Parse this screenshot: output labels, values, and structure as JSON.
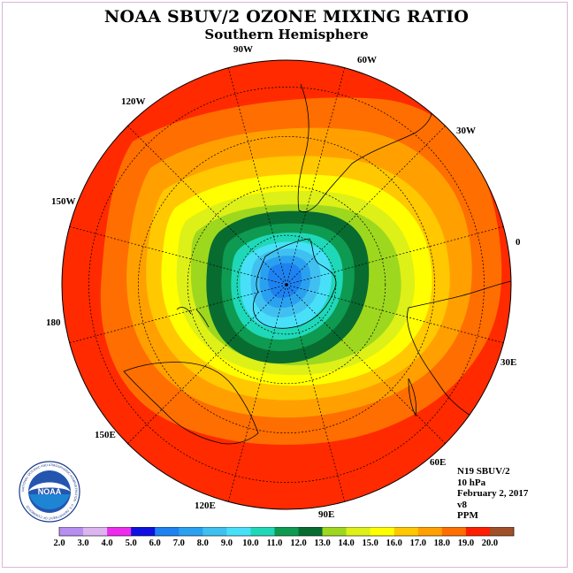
{
  "title": "NOAA SBUV/2 OZONE MIXING RATIO",
  "subtitle": "Southern Hemisphere",
  "longitude_labels": [
    {
      "id": "90w",
      "text": "90W"
    },
    {
      "id": "60w",
      "text": "60W"
    },
    {
      "id": "120w",
      "text": "120W"
    },
    {
      "id": "30w",
      "text": "30W"
    },
    {
      "id": "150w",
      "text": "150W"
    },
    {
      "id": "0",
      "text": "0"
    },
    {
      "id": "180",
      "text": "180"
    },
    {
      "id": "30e",
      "text": "30E"
    },
    {
      "id": "150e",
      "text": "150E"
    },
    {
      "id": "60e",
      "text": "60E"
    },
    {
      "id": "120e",
      "text": "120E"
    },
    {
      "id": "90e",
      "text": "90E"
    }
  ],
  "info": {
    "satellite": "N19 SBUV/2",
    "pressure": "10 hPa",
    "date": "February 2, 2017",
    "version": "v8",
    "units": "PPM"
  },
  "logo": {
    "text": "NOAA",
    "ring_text": "NATIONAL OCEANIC AND ATMOSPHERIC ADMINISTRATION · U.S. DEPARTMENT OF COMMERCE"
  },
  "colorbar": {
    "labels": [
      "2.0",
      "3.0",
      "4.0",
      "5.0",
      "6.0",
      "7.0",
      "8.0",
      "9.0",
      "10.0",
      "11.0",
      "12.0",
      "13.0",
      "14.0",
      "15.0",
      "16.0",
      "17.0",
      "18.0",
      "19.0",
      "20.0"
    ],
    "colors": [
      "#b68ff0",
      "#dcb4f0",
      "#ee2cee",
      "#1010e0",
      "#1e82f0",
      "#2aa0f0",
      "#40c0f0",
      "#48e0f8",
      "#1fd8b8",
      "#0e9a50",
      "#086c30",
      "#9ed81e",
      "#ddf018",
      "#ffff00",
      "#ffc800",
      "#ffa000",
      "#ff6e00",
      "#ff1e00",
      "#a05028"
    ]
  },
  "map_colors": {
    "band_18_19": "#ff2a00",
    "band_17_18": "#ff6e00",
    "band_16_17": "#ffa000",
    "band_15_16": "#ffc800",
    "band_14_15": "#ffff00",
    "band_13_14": "#ddf018",
    "band_12_13": "#9ed81e",
    "band_11_12": "#086c30",
    "band_10_11": "#0e9a50",
    "band_9_10": "#1fd8b8",
    "band_8_9": "#48e0f8",
    "band_7_8": "#40c0f0",
    "band_6_7": "#2aa0f0",
    "band_5_6": "#1e82f0"
  }
}
